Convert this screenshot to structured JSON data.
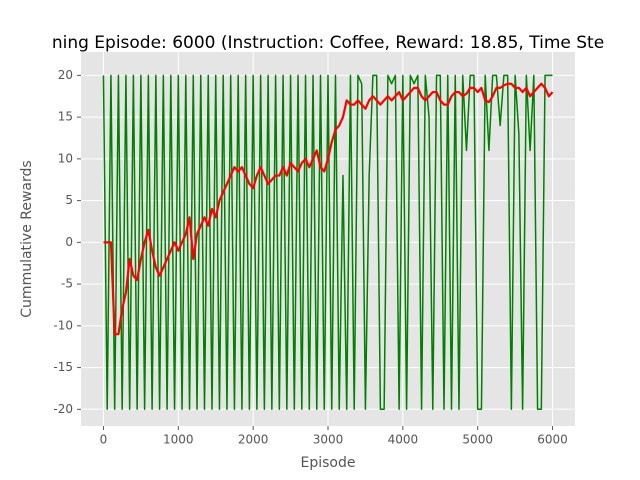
{
  "chart_data": {
    "type": "line",
    "title": "ning Episode: 6000 (Instruction: Coffee, Reward: 18.85, Time Ste",
    "x_label": "Episode",
    "y_label": "Cummulative Rewards",
    "x": [
      0,
      50,
      100,
      150,
      200,
      250,
      300,
      350,
      400,
      450,
      500,
      550,
      600,
      650,
      700,
      750,
      800,
      850,
      900,
      950,
      1000,
      1050,
      1100,
      1150,
      1200,
      1250,
      1300,
      1350,
      1400,
      1450,
      1500,
      1550,
      1600,
      1650,
      1700,
      1750,
      1800,
      1850,
      1900,
      1950,
      2000,
      2050,
      2100,
      2150,
      2200,
      2250,
      2300,
      2350,
      2400,
      2450,
      2500,
      2550,
      2600,
      2650,
      2700,
      2750,
      2800,
      2850,
      2900,
      2950,
      3000,
      3050,
      3100,
      3150,
      3200,
      3250,
      3300,
      3350,
      3400,
      3450,
      3500,
      3550,
      3600,
      3650,
      3700,
      3750,
      3800,
      3850,
      3900,
      3950,
      4000,
      4050,
      4100,
      4150,
      4200,
      4250,
      4300,
      4350,
      4400,
      4450,
      4500,
      4550,
      4600,
      4650,
      4700,
      4750,
      4800,
      4850,
      4900,
      4950,
      5000,
      5050,
      5100,
      5150,
      5200,
      5250,
      5300,
      5350,
      5400,
      5450,
      5500,
      5550,
      5600,
      5650,
      5700,
      5750,
      5800,
      5850,
      5900,
      5950,
      6000
    ],
    "series": [
      {
        "color": "#008000",
        "values": [
          20,
          -20,
          20,
          -20,
          20,
          -20,
          20,
          -20,
          20,
          -20,
          20,
          -20,
          20,
          -20,
          20,
          -20,
          20,
          -20,
          20,
          -20,
          20,
          -20,
          20,
          -20,
          20,
          -20,
          20,
          -20,
          20,
          -20,
          20,
          -20,
          20,
          -20,
          20,
          -20,
          20,
          -20,
          20,
          -20,
          20,
          -20,
          20,
          -20,
          20,
          -20,
          20,
          -20,
          20,
          -20,
          20,
          -20,
          20,
          -20,
          20,
          -20,
          20,
          -20,
          20,
          -20,
          20,
          -20,
          20,
          -20,
          8,
          -20,
          20,
          -20,
          20,
          19,
          -20,
          8,
          20,
          20,
          -20,
          -20,
          20,
          19,
          20,
          -20,
          20,
          -20,
          20,
          19,
          20,
          -20,
          20,
          15,
          -20,
          20,
          20,
          -20,
          20,
          -20,
          20,
          -20,
          20,
          11,
          20,
          20,
          -20,
          -20,
          20,
          11,
          20,
          20,
          14,
          20,
          20,
          -20,
          20,
          13,
          -20,
          20,
          11,
          20,
          -20,
          -20,
          20,
          20,
          20
        ]
      },
      {
        "color": "#ff0000",
        "values": [
          0,
          0,
          0,
          -11,
          -11,
          -8,
          -6,
          -2,
          -4,
          -4.5,
          -2,
          0,
          1.5,
          -1,
          -3,
          -4,
          -3,
          -2,
          -1,
          0,
          -1,
          0,
          1,
          3,
          -2,
          1,
          2,
          3,
          2,
          4,
          3,
          5,
          6,
          7,
          8,
          9,
          8.5,
          9,
          8,
          7,
          6.5,
          8,
          9,
          8,
          7,
          7.5,
          8,
          8,
          9,
          8,
          9.5,
          9,
          8.5,
          9.5,
          10,
          9,
          10,
          11,
          9,
          8.5,
          10,
          12,
          13.5,
          14,
          15,
          17,
          16.5,
          16.5,
          17,
          16.5,
          16,
          17,
          17.5,
          17,
          16.5,
          17,
          17.5,
          17,
          17.5,
          18,
          17,
          17.5,
          18,
          18.5,
          18.5,
          17.5,
          17,
          17.5,
          18,
          18,
          17,
          16.5,
          16.5,
          17.5,
          18,
          18,
          17.5,
          17.8,
          18.5,
          18.5,
          18,
          18.5,
          17,
          16.8,
          17.5,
          18.5,
          18.5,
          18.8,
          19,
          19,
          18.5,
          18.5,
          18,
          18.5,
          17.5,
          18,
          18.5,
          19,
          18.5,
          17.5,
          18
        ]
      }
    ],
    "xlim": [
      -300,
      6300
    ],
    "ylim": [
      -22,
      22.8
    ],
    "xticks": [
      0,
      1000,
      2000,
      3000,
      4000,
      5000,
      6000
    ],
    "yticks": [
      -20,
      -15,
      -10,
      -5,
      0,
      5,
      10,
      15,
      20
    ],
    "grid": true
  }
}
